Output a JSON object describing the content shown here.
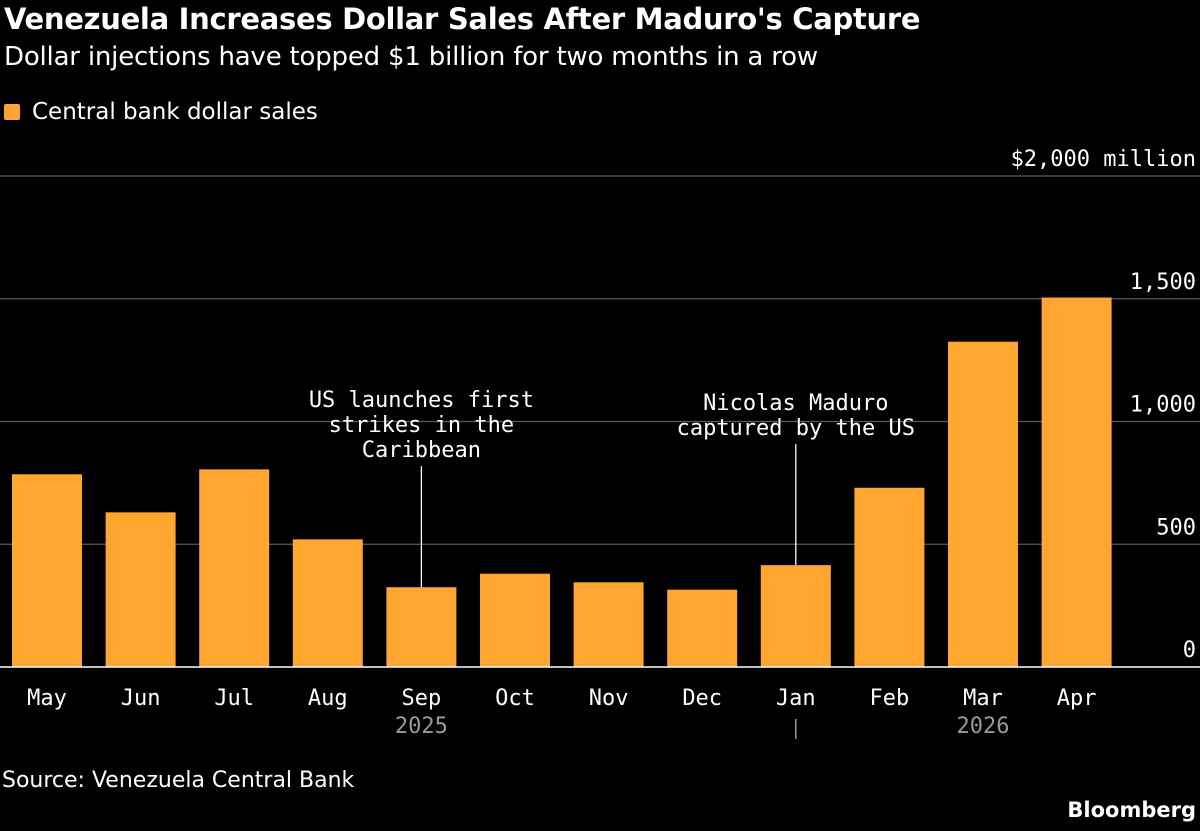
{
  "title": "Venezuela Increases Dollar Sales After Maduro's Capture",
  "subtitle": "Dollar injections have topped $1 billion for two months in a row",
  "source": "Source: Venezuela Central Bank",
  "brand": "Bloomberg",
  "colors": {
    "bar": "#ffa630",
    "grid": "#5a5a5a",
    "background": "#000000",
    "text": "#ffffff",
    "muted": "#9a9a9a"
  },
  "chart_data": {
    "type": "bar",
    "categories": [
      "May",
      "Jun",
      "Jul",
      "Aug",
      "Sep",
      "Oct",
      "Nov",
      "Dec",
      "Jan",
      "Feb",
      "Mar",
      "Apr"
    ],
    "series": [
      {
        "name": "Central bank dollar sales",
        "values": [
          785,
          630,
          805,
          520,
          325,
          380,
          345,
          315,
          415,
          730,
          1325,
          1505
        ]
      }
    ],
    "ylim": [
      0,
      2000
    ],
    "yticks": [
      0,
      500,
      1000,
      1500,
      2000
    ],
    "ytick_labels": [
      "0",
      "500",
      "1,000",
      "1,500",
      "$2,000 million"
    ],
    "year_labels": [
      {
        "label": "2025",
        "category": "Sep"
      },
      {
        "label": "2026",
        "category": "Mar"
      }
    ],
    "year_divider": "Jan",
    "annotations": [
      {
        "category": "Sep",
        "lines": [
          "US launches first",
          "strikes in the",
          "Caribbean"
        ]
      },
      {
        "category": "Jan",
        "lines": [
          "Nicolas Maduro",
          "captured by the US"
        ]
      }
    ],
    "legend_position": "top-left",
    "grid": true
  }
}
